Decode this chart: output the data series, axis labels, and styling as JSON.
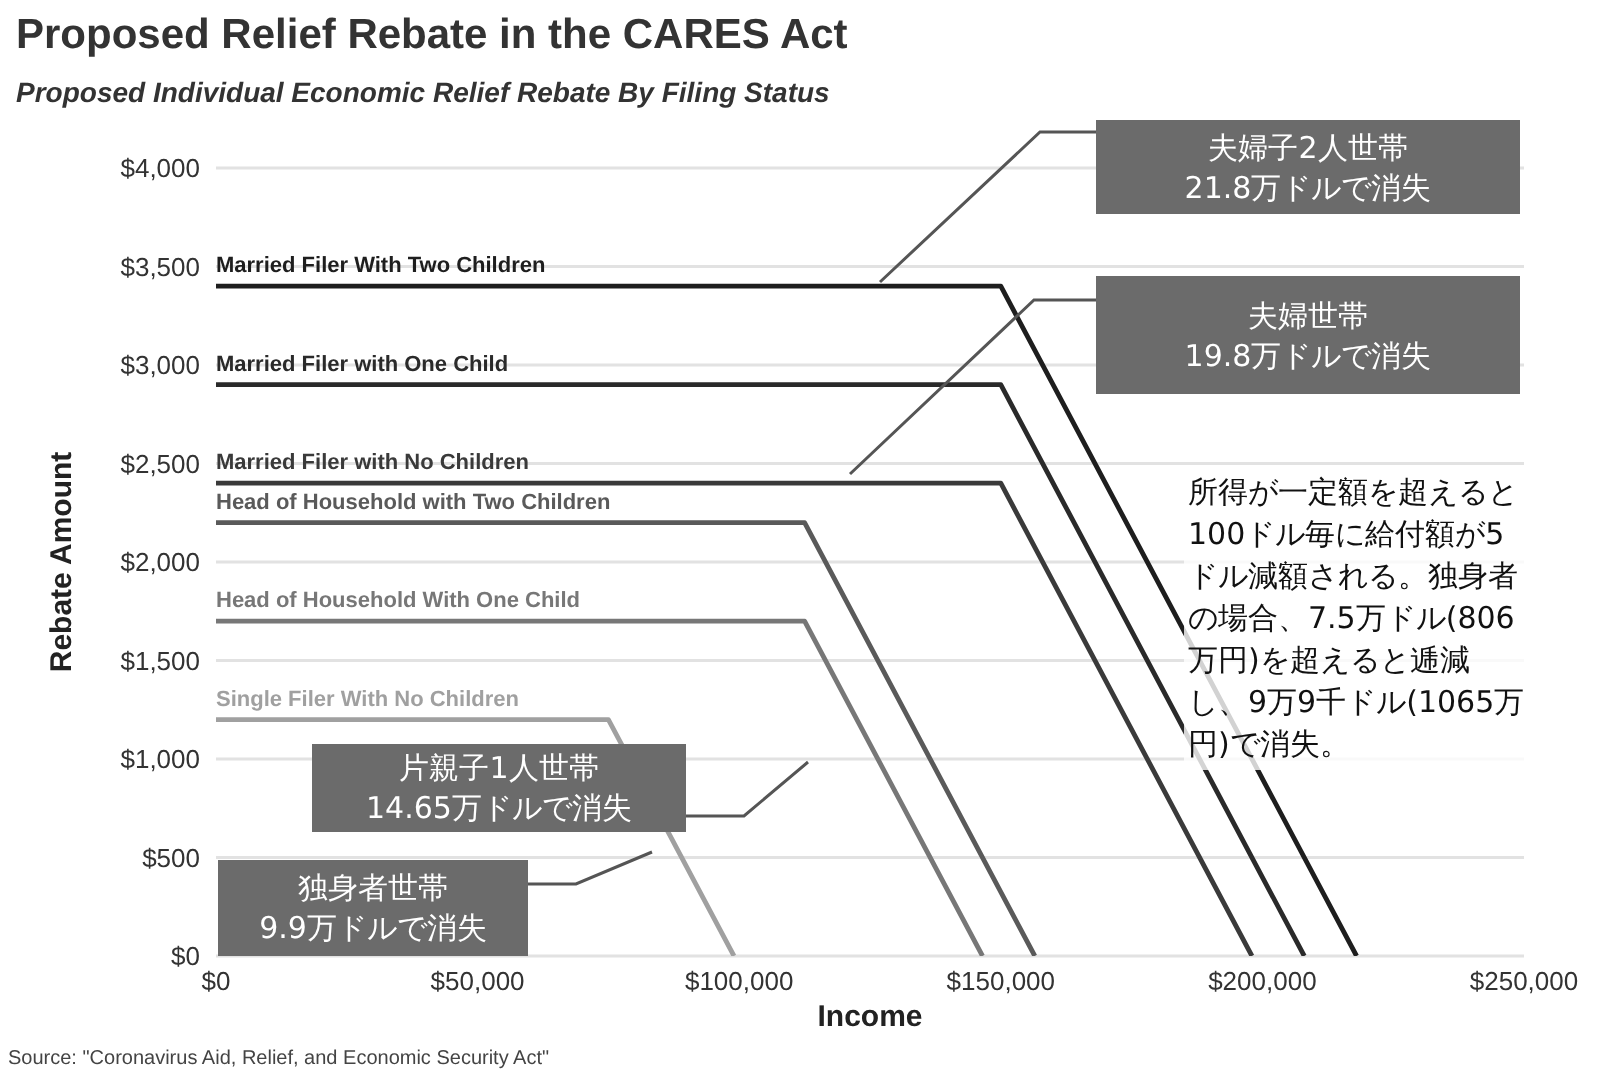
{
  "chart_data": {
    "type": "line",
    "title": "Proposed Relief Rebate in the CARES Act",
    "subtitle": "Proposed Individual Economic Relief Rebate By Filing Status",
    "xlabel": "Income",
    "ylabel": "Rebate Amount",
    "series": [
      {
        "name": "Married Filer With Two Children",
        "color": "#1e1e1e",
        "x": [
          0,
          150000,
          218000
        ],
        "values": [
          3400,
          3400,
          0
        ]
      },
      {
        "name": "Married Filer with One Child",
        "color": "#2a2a2a",
        "x": [
          0,
          150000,
          208000
        ],
        "values": [
          2900,
          2900,
          0
        ]
      },
      {
        "name": "Married Filer with No Children",
        "color": "#3a3a3a",
        "x": [
          0,
          150000,
          198000
        ],
        "values": [
          2400,
          2400,
          0
        ]
      },
      {
        "name": "Head of Household with Two Children",
        "color": "#5a5a5a",
        "x": [
          0,
          112500,
          156500
        ],
        "values": [
          2200,
          2200,
          0
        ]
      },
      {
        "name": "Head of Household With One Child",
        "color": "#777777",
        "x": [
          0,
          112500,
          146500
        ],
        "values": [
          1700,
          1700,
          0
        ]
      },
      {
        "name": "Single Filer With No Children",
        "color": "#a0a0a0",
        "x": [
          0,
          75000,
          99000
        ],
        "values": [
          1200,
          1200,
          0
        ]
      }
    ],
    "xlim": [
      0,
      250000
    ],
    "xticks": [
      {
        "value": 0,
        "label": "$0"
      },
      {
        "value": 50000,
        "label": "$50,000"
      },
      {
        "value": 100000,
        "label": "$100,000"
      },
      {
        "value": 150000,
        "label": "$150,000"
      },
      {
        "value": 200000,
        "label": "$200,000"
      },
      {
        "value": 250000,
        "label": "$250,000"
      }
    ],
    "ylim": [
      0,
      4000
    ],
    "yticks": [
      {
        "value": 0,
        "label": "$0"
      },
      {
        "value": 500,
        "label": "$500"
      },
      {
        "value": 1000,
        "label": "$1,000"
      },
      {
        "value": 1500,
        "label": "$1,500"
      },
      {
        "value": 2000,
        "label": "$2,000"
      },
      {
        "value": 2500,
        "label": "$2,500"
      },
      {
        "value": 3000,
        "label": "$3,000"
      },
      {
        "value": 3500,
        "label": "$3,500"
      },
      {
        "value": 4000,
        "label": "$4,000"
      }
    ],
    "grid": "y",
    "annotations": [
      "Source: \"Coronavirus Aid, Relief, and Economic Security Act\"",
      "夫婦子2人世帯",
      "21.8万ドルで消失",
      "夫婦世帯",
      "19.8万ドルで消失",
      "片親子1人世帯",
      "14.65万ドルで消失",
      "独身者世帯",
      "9.9万ドルで消失",
      "所得が一定額を超えると100ドル毎に給付額が5ドル減額される。独身者の場合、7.5万ドル(806万円)を超えると逓減し、9万9千ドル(1065万円)で消失。"
    ]
  }
}
